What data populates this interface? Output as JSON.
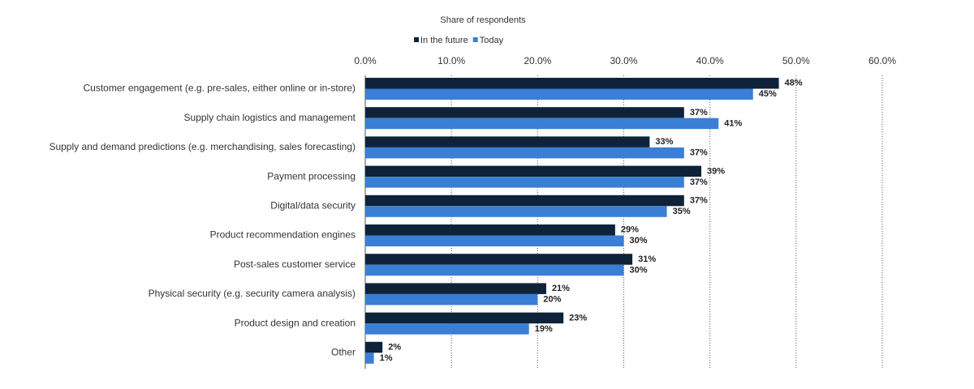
{
  "chart_data": {
    "type": "hbar",
    "title": "Share of respondents",
    "categories": [
      "Customer engagement (e.g. pre-sales, either online or in-store)",
      "Supply chain logistics and management",
      "Supply and demand predictions (e.g. merchandising, sales forecasting)",
      "Payment processing",
      "Digital/data security",
      "Product recommendation engines",
      "Post-sales customer service",
      "Physical security (e.g. security camera analysis)",
      "Product design and creation",
      "Other"
    ],
    "series": [
      {
        "name": "In the future",
        "color": "#0e2339",
        "values": [
          48,
          37,
          33,
          39,
          37,
          29,
          31,
          21,
          23,
          2
        ],
        "value_labels": [
          "48%",
          "37%",
          "33%",
          "39%",
          "37%",
          "29%",
          "31%",
          "21%",
          "23%",
          "2%"
        ]
      },
      {
        "name": "Today",
        "color": "#3a7fd5",
        "values": [
          45,
          41,
          37,
          37,
          35,
          30,
          30,
          20,
          19,
          1
        ],
        "value_labels": [
          "45%",
          "41%",
          "37%",
          "37%",
          "35%",
          "30%",
          "30%",
          "20%",
          "19%",
          "1%"
        ]
      }
    ],
    "xlim": [
      0,
      60
    ],
    "xticks": [
      {
        "value": 0,
        "label": "0.0%"
      },
      {
        "value": 10,
        "label": "10.0%"
      },
      {
        "value": 20,
        "label": "20.0%"
      },
      {
        "value": 30,
        "label": "30.0%"
      },
      {
        "value": 40,
        "label": "40.0%"
      },
      {
        "value": 50,
        "label": "50.0%"
      },
      {
        "value": 60,
        "label": "60.0%"
      }
    ],
    "grid": true,
    "legend": "top"
  }
}
